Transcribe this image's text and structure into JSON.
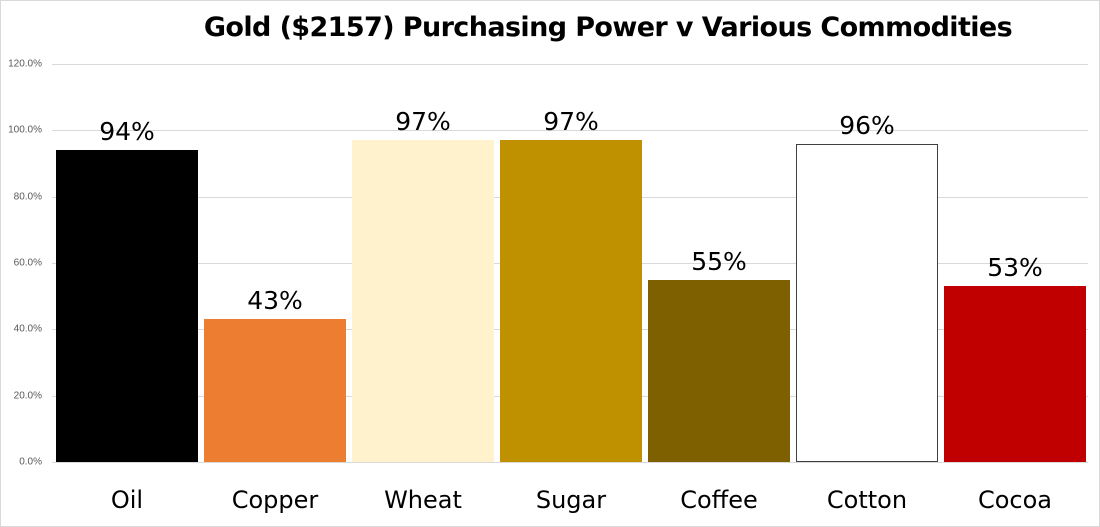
{
  "chart_data": {
    "type": "bar",
    "title": "Gold ($2157) Purchasing Power v Various Commodities",
    "xlabel": "",
    "ylabel": "",
    "ylim": [
      0,
      120
    ],
    "grid": true,
    "legend": "none",
    "y_ticks": [
      "0.0%",
      "20.0%",
      "40.0%",
      "60.0%",
      "80.0%",
      "100.0%",
      "120.0%"
    ],
    "categories": [
      "Oil",
      "Copper",
      "Wheat",
      "Sugar",
      "Coffee",
      "Cotton",
      "Cocoa"
    ],
    "values": [
      94,
      43,
      97,
      97,
      55,
      96,
      53
    ],
    "data_labels": [
      "94%",
      "43%",
      "97%",
      "97%",
      "55%",
      "96%",
      "53%"
    ],
    "colors": [
      "#000000",
      "#ED7D31",
      "#FFF2CC",
      "#BF9000",
      "#7F6000",
      "#FFFFFF",
      "#C00000"
    ],
    "borders": [
      "none",
      "none",
      "none",
      "none",
      "none",
      "#404040",
      "none"
    ]
  }
}
